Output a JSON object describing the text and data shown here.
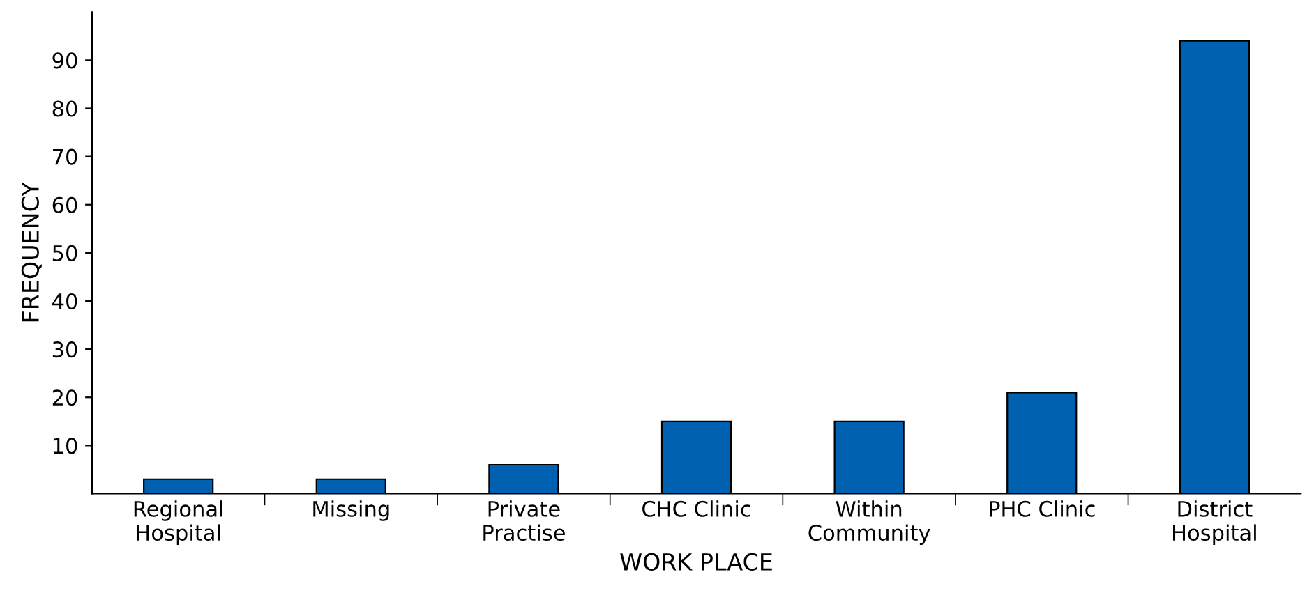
{
  "chart_data": {
    "type": "bar",
    "xlabel": "WORK PLACE",
    "ylabel": "FREQUENCY",
    "categories": [
      "Regional\nHospital",
      "Missing",
      "Private\nPractise",
      "CHC Clinic",
      "Within\nCommunity",
      "PHC Clinic",
      "District\nHospital"
    ],
    "values": [
      3,
      3,
      6,
      15,
      15,
      21,
      94
    ],
    "color": "#0061b1",
    "ylim": [
      0,
      100
    ],
    "yticks": [
      10,
      20,
      30,
      40,
      50,
      60,
      70,
      80,
      90
    ],
    "grid": false,
    "legend": false
  }
}
